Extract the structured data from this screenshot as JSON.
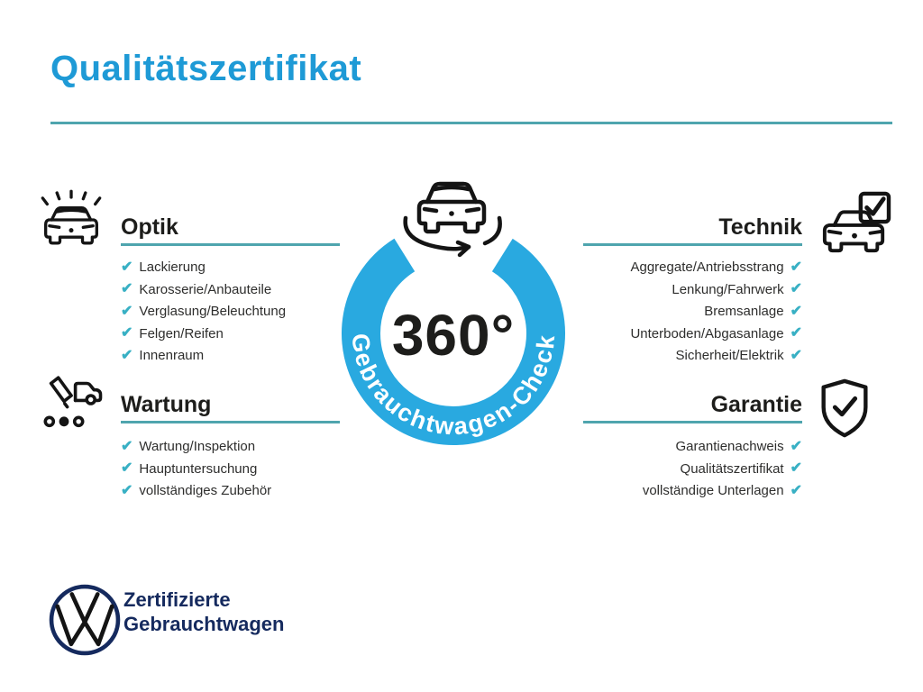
{
  "title": "Qualitätszertifikat",
  "badge": {
    "degree": "360°",
    "ring_text": "Gebrauchtwagen-Check"
  },
  "sections": {
    "optik": {
      "heading": "Optik",
      "items": [
        "Lackierung",
        "Karosserie/Anbauteile",
        "Verglasung/Beleuchtung",
        "Felgen/Reifen",
        "Innenraum"
      ]
    },
    "technik": {
      "heading": "Technik",
      "items": [
        "Aggregate/Antriebsstrang",
        "Lenkung/Fahrwerk",
        "Bremsanlage",
        "Unterboden/Abgasanlage",
        "Sicherheit/Elektrik"
      ]
    },
    "wartung": {
      "heading": "Wartung",
      "items": [
        "Wartung/Inspektion",
        "Hauptuntersuchung",
        "vollständiges Zubehör"
      ]
    },
    "garantie": {
      "heading": "Garantie",
      "items": [
        "Garantienachweis",
        "Qualitätszertifikat",
        "vollständige Unterlagen"
      ]
    }
  },
  "footer": {
    "brand_line1": "Zertifizierte",
    "brand_line2": "Gebrauchtwagen"
  },
  "icons": {
    "check_glyph": "✔",
    "optik": "shiny-car-icon",
    "wartung": "service-record-icon",
    "technik": "car-checkbox-icon",
    "garantie": "shield-check-icon",
    "center": "car-360-rotation-icon",
    "brand": "vw-logo"
  },
  "colors": {
    "title_blue": "#1E9AD6",
    "ring_blue": "#29A9E0",
    "teal_line": "#4FA5AE",
    "check_teal": "#38B0C4",
    "navy": "#152A5E",
    "text_dark": "#1D1D1B",
    "item_text": "#2E2E2D"
  }
}
